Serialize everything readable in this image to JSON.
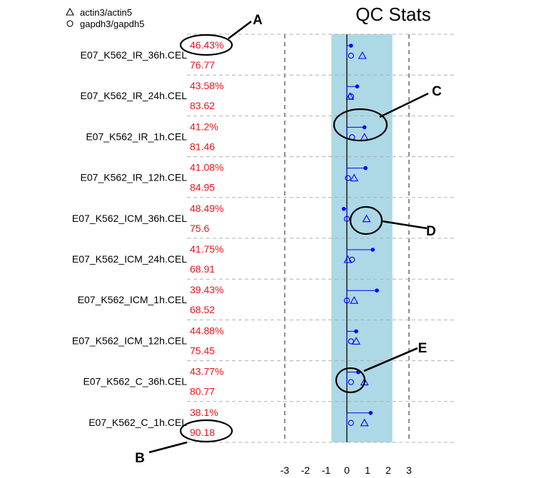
{
  "chart_data": {
    "type": "scatter",
    "title": "QC Stats",
    "legend": [
      {
        "marker": "triangle",
        "label": "actin3/actin5"
      },
      {
        "marker": "circle",
        "label": "gapdh3/gapdh5"
      }
    ],
    "legend_position": "top-left",
    "x_ticks": [
      "-3",
      "-2",
      "-1",
      "0",
      "1",
      "2",
      "3"
    ],
    "xlim": [
      -3,
      3
    ],
    "shaded_band": [
      -0.75,
      2.2
    ],
    "samples": [
      {
        "name": "E07_K562_IR_36h.CEL",
        "pct": "46.43%",
        "score": "76.77",
        "scale_factor": 0.2,
        "actin": 0.75,
        "gapdh": 0.2
      },
      {
        "name": "E07_K562_IR_24h.CEL",
        "pct": "43.58%",
        "score": "83.62",
        "scale_factor": 0.5,
        "actin": 0.15,
        "gapdh": 0.2
      },
      {
        "name": "E07_K562_IR_1h.CEL",
        "pct": "41.2%",
        "score": "81.46",
        "scale_factor": 0.85,
        "actin": 0.85,
        "gapdh": 0.25
      },
      {
        "name": "E07_K562_IR_12h.CEL",
        "pct": "41.08%",
        "score": "84.95",
        "scale_factor": 0.9,
        "actin": 0.35,
        "gapdh": 0.05
      },
      {
        "name": "E07_K562_ICM_36h.CEL",
        "pct": "48.49%",
        "score": "75.6",
        "scale_factor": -0.15,
        "actin": 0.95,
        "gapdh": 0.0
      },
      {
        "name": "E07_K562_ICM_24h.CEL",
        "pct": "41.75%",
        "score": "68.91",
        "scale_factor": 1.25,
        "actin": 0.05,
        "gapdh": 0.25
      },
      {
        "name": "E07_K562_ICM_1h.CEL",
        "pct": "39.43%",
        "score": "68.52",
        "scale_factor": 1.45,
        "actin": 0.35,
        "gapdh": 0.0
      },
      {
        "name": "E07_K562_ICM_12h.CEL",
        "pct": "44.88%",
        "score": "75.45",
        "scale_factor": 0.45,
        "actin": 0.45,
        "gapdh": 0.2
      },
      {
        "name": "E07_K562_C_36h.CEL",
        "pct": "43.77%",
        "score": "80.77",
        "scale_factor": 0.55,
        "actin": 0.85,
        "gapdh": 0.2
      },
      {
        "name": "E07_K562_C_1h.CEL",
        "pct": "38.1%",
        "score": "90.18",
        "scale_factor": 1.15,
        "actin": 0.85,
        "gapdh": 0.2
      }
    ],
    "annotations": [
      "A",
      "B",
      "C",
      "D",
      "E"
    ],
    "colors": {
      "band": "#add8e6",
      "markers": "#0000ff",
      "value_text": "#e8141a",
      "grid": "#b0b0b0"
    }
  }
}
